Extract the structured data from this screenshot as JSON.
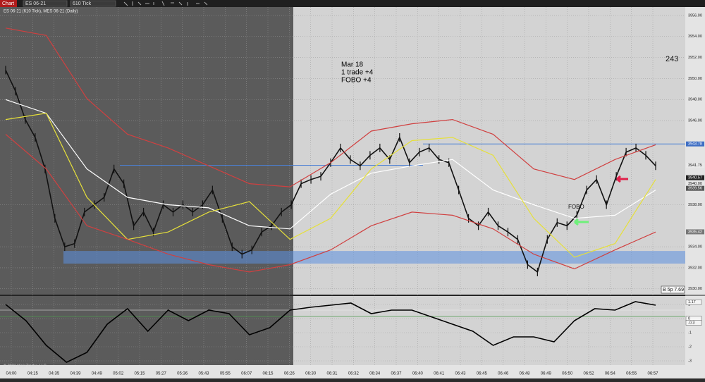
{
  "toolbar": {
    "tab": "Chart",
    "instrument": "ES 06-21",
    "interval": "610 Tick"
  },
  "chart": {
    "header": "ES 06-21 (610 Tick), MES 06-21 (Daily)",
    "annotation": [
      "Mar 18",
      "1 trade  +4",
      "FOBO  +4"
    ],
    "fobo_label": "FOBO",
    "counter": "243",
    "status": "B 5p 7.69",
    "copyright": "© 2021 NinjaTrader, LLC",
    "price_axis": {
      "ylim": [
        3929.45,
        3956.8
      ],
      "yticks": [
        {
          "value": 3956,
          "label": "3956.00"
        },
        {
          "value": 3954,
          "label": "3954.00"
        },
        {
          "value": 3952,
          "label": "3952.00"
        },
        {
          "value": 3950,
          "label": "3950.00"
        },
        {
          "value": 3948,
          "label": "3948.00"
        },
        {
          "value": 3946,
          "label": "3946.00"
        },
        {
          "value": 3938,
          "label": "3938.00"
        },
        {
          "value": 3934,
          "label": "3934.00"
        },
        {
          "value": 3932,
          "label": "3932.00"
        },
        {
          "value": 3930,
          "label": "3930.00"
        }
      ]
    },
    "price_markers": [
      {
        "value": 3943.78,
        "label": "3943.78",
        "color": "#3f6fc4"
      },
      {
        "value": 3941.75,
        "label": "3941.75",
        "color": "#e8e8e8"
      },
      {
        "value": 3940.57,
        "label": "3940.57",
        "color": "#222222"
      },
      {
        "value": 3940,
        "label": "3940.00",
        "color": "#e8e8e8"
      },
      {
        "value": 3939.56,
        "label": "3939.56",
        "color": "#555555"
      },
      {
        "value": 3935.42,
        "label": "3935.42",
        "color": "#777777"
      }
    ],
    "levels": [
      {
        "value": 3943.78,
        "color": "#4a7fd4"
      },
      {
        "value": 3941.75,
        "color": "#4a7fd4"
      }
    ],
    "zone": {
      "values": [
        3933.6,
        3932.4
      ],
      "color": "#5b8fe0"
    },
    "time_labels": [
      "04:00",
      "04:15",
      "04:35",
      "04:39",
      "04:49",
      "05:02",
      "05:15",
      "05:27",
      "05:36",
      "05:43",
      "05:55",
      "06:07",
      "06:15",
      "06:26",
      "06:30",
      "06:31",
      "06:32",
      "06:34",
      "06:37",
      "06:40",
      "06:41",
      "06:43",
      "06:45",
      "06:46",
      "06:48",
      "06:49",
      "06:50",
      "06:52",
      "06:54",
      "06:55",
      "06:57"
    ],
    "series": [
      {
        "color": "#111111",
        "values": [
          3950.8,
          3948.8,
          3946.1,
          3944.4,
          3941.4,
          3936.7,
          3934,
          3934.3,
          3937.3,
          3938,
          3938.7,
          3941.4,
          3940,
          3936,
          3937.3,
          3935.4,
          3938,
          3937.3,
          3938,
          3937.3,
          3938,
          3939.4,
          3936.7,
          3934,
          3933.3,
          3933.7,
          3935.4,
          3936,
          3937.3,
          3938,
          3940,
          3940.4,
          3940.7,
          3942,
          3943.4,
          3942.3,
          3941.7,
          3942.7,
          3943.4,
          3942.3,
          3944.4,
          3942,
          3943,
          3943.4,
          3942.3,
          3942,
          3939.4,
          3936.7,
          3936,
          3937.3,
          3936,
          3935.4,
          3934.7,
          3932.3,
          3931.6,
          3934.7,
          3936.3,
          3936,
          3937,
          3939.4,
          3940.4,
          3938,
          3940.7,
          3943,
          3943.4,
          3942.7,
          3941.7
        ]
      },
      {
        "color": "#ffffff",
        "values": [
          3948,
          3946.7,
          3941.4,
          3938.7,
          3938,
          3937.7,
          3936,
          3935.7,
          3939,
          3941,
          3941.7,
          3942.3,
          3939.4,
          3938,
          3936.7,
          3937,
          3939.4
        ]
      },
      {
        "color": "#e6e03a",
        "values": [
          3946.1,
          3946.7,
          3938.7,
          3934.7,
          3935.4,
          3937.3,
          3938.3,
          3934.7,
          3936.7,
          3941.4,
          3944.1,
          3944.4,
          3942.7,
          3936.7,
          3933,
          3934.3,
          3940.4
        ]
      },
      {
        "color": "#d04040",
        "values": [
          3954.8,
          3954.1,
          3948.1,
          3944.7,
          3943.4,
          3941.7,
          3940,
          3939.7,
          3942,
          3945,
          3945.7,
          3946.1,
          3944.7,
          3941.4,
          3940.4,
          3942.3,
          3943.7
        ]
      },
      {
        "color": "#d04040",
        "values": [
          3944.7,
          3941.4,
          3936,
          3934.7,
          3933.3,
          3932.3,
          3931.6,
          3932.3,
          3933.7,
          3936,
          3937.3,
          3937,
          3935.7,
          3933.3,
          3931.9,
          3933.7,
          3935.4
        ]
      }
    ],
    "oscillator": {
      "ylim": [
        1.6,
        -3.3
      ],
      "yticks": [
        1,
        0,
        -1,
        -2,
        -3
      ],
      "color": "#000000",
      "values": [
        1.0,
        -0.15,
        -1.9,
        -3.1,
        -2.4,
        -0.4,
        0.7,
        -0.9,
        0.6,
        -0.15,
        0.6,
        0.35,
        -1.15,
        -0.65,
        0.6,
        0.8,
        0.95,
        1.1,
        0.35,
        0.6,
        0.6,
        0.1,
        -0.4,
        -0.9,
        -1.9,
        -1.3,
        -1.3,
        -1.65,
        -0.15,
        0.7,
        0.6,
        1.2,
        0.95
      ],
      "markers": [
        {
          "value": 1.17,
          "label": "1.17"
        },
        0,
        {
          "value": -0.3,
          "label": "-0.3"
        }
      ]
    }
  }
}
